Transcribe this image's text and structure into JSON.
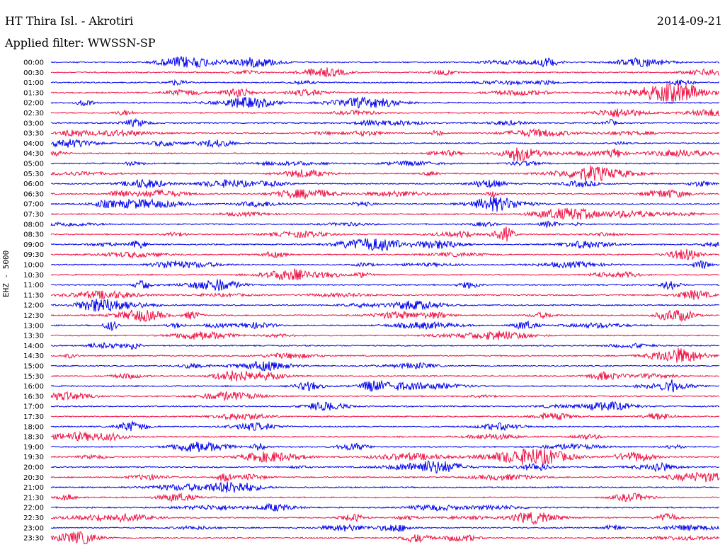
{
  "header": {
    "station": "HT Thira Isl. - Akrotiri",
    "date": "2014-09-21",
    "filter": "Applied filter: WWSSN-SP"
  },
  "chart_data": {
    "type": "line",
    "title": "HT Thira Isl. - Akrotiri",
    "ylabel": "EHZ - 5000",
    "colors": [
      "#0000ee",
      "#ee1144"
    ],
    "rows": [
      "00:00",
      "00:30",
      "01:00",
      "01:30",
      "02:00",
      "02:30",
      "03:00",
      "03:30",
      "04:00",
      "04:30",
      "05:00",
      "05:30",
      "06:00",
      "06:30",
      "07:00",
      "07:30",
      "08:00",
      "08:30",
      "09:00",
      "09:30",
      "10:00",
      "10:30",
      "11:00",
      "11:30",
      "12:00",
      "12:30",
      "13:00",
      "13:30",
      "14:00",
      "14:30",
      "15:00",
      "15:30",
      "16:00",
      "16:30",
      "17:00",
      "17:30",
      "18:00",
      "18:30",
      "19:00",
      "19:30",
      "20:00",
      "20:30",
      "21:00",
      "21:30",
      "22:00",
      "22:30",
      "23:00",
      "23:30"
    ]
  }
}
